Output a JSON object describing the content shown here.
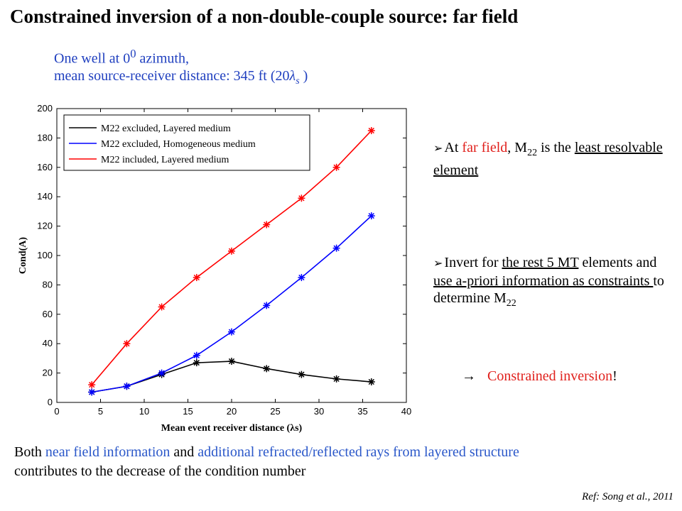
{
  "slide": {
    "title": "Constrained inversion of a non-double-couple source: far field",
    "subtitle_line1_pre": "One well at 0",
    "subtitle_line1_sup": "0",
    "subtitle_line1_post": " azimuth,",
    "subtitle_line2_pre": "mean source-receiver distance: 345 ft (20",
    "subtitle_line2_lambda": "λ",
    "subtitle_line2_sub": "s",
    "subtitle_line2_post": " )",
    "bullet1": {
      "marker": "➢",
      "t1": "At ",
      "t2": "far field",
      "t3": ", M",
      "t3_sub": "22",
      "t4": " is the ",
      "t5": "least resolvable element"
    },
    "bullet2": {
      "marker": "➢",
      "t1": "Invert for ",
      "t2": "the rest 5 MT",
      "t3": " elements and ",
      "t4": "use a-priori information as constraints ",
      "t5": "to determine M",
      "t5_sub": "22"
    },
    "bullet3": {
      "marker": "→",
      "text": "Constrained inversion",
      "tail": "!"
    },
    "footer": {
      "p1": "Both ",
      "p2": "near field information",
      "p3": " and ",
      "p4": "additional refracted/reflected rays from layered structure",
      "p5": " contributes to the decrease of the condition number"
    },
    "ref": "Ref: Song et al., 2011"
  },
  "chart_data": {
    "type": "line",
    "xlabel": "Mean event receiver distance (λs)",
    "ylabel": "Cond(A)",
    "xlim": [
      0,
      40
    ],
    "ylim": [
      0,
      200
    ],
    "xticks": [
      0,
      5,
      10,
      15,
      20,
      25,
      30,
      35,
      40
    ],
    "yticks": [
      0,
      20,
      40,
      60,
      80,
      100,
      120,
      140,
      160,
      180,
      200
    ],
    "grid": false,
    "legend_position": "top-left",
    "marker": "asterisk",
    "x": [
      4,
      8,
      12,
      16,
      20,
      24,
      28,
      32,
      36
    ],
    "series": [
      {
        "name": "M22 excluded, Layered medium",
        "color": "#000000",
        "values": [
          7,
          11,
          19,
          27,
          28,
          23,
          19,
          16,
          14
        ]
      },
      {
        "name": "M22 excluded, Homogeneous medium",
        "color": "#0000ff",
        "values": [
          7,
          11,
          20,
          32,
          48,
          66,
          85,
          105,
          127
        ]
      },
      {
        "name": "M22 included, Layered medium",
        "color": "#ff0000",
        "values": [
          12,
          40,
          65,
          85,
          103,
          121,
          139,
          160,
          185
        ]
      }
    ]
  }
}
